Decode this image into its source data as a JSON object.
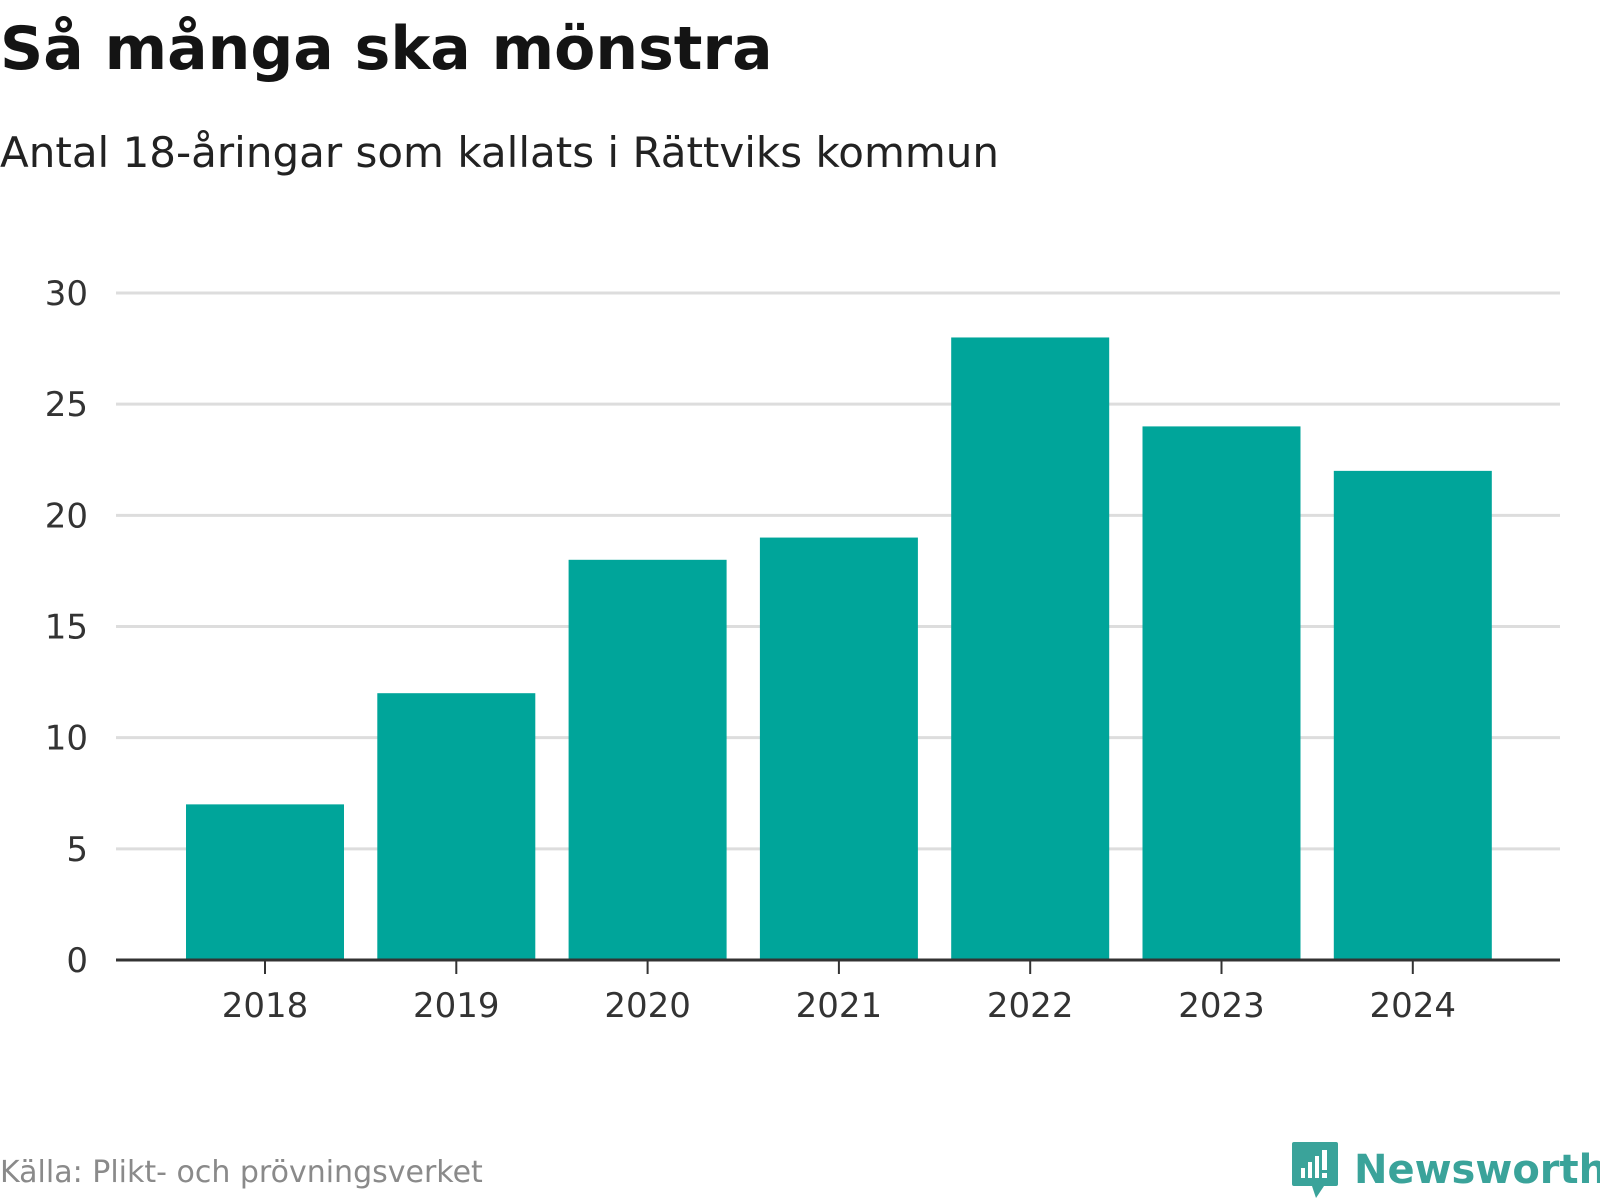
{
  "header": {
    "title": "Så många ska mönstra",
    "subtitle": "Antal 18-åringar som kallats i Rättviks kommun"
  },
  "footer": {
    "source": "Källa: Plikt- och prövningsverket",
    "brand": "Newsworthy"
  },
  "colors": {
    "bar": "#00a59a",
    "grid": "#dddddd",
    "axis": "#333333",
    "brand": "#3aa39a"
  },
  "icons": {
    "brand_logo": "newsworthy-logo-icon"
  },
  "chart_data": {
    "type": "bar",
    "title": "Så många ska mönstra",
    "subtitle": "Antal 18-åringar som kallats i Rättviks kommun",
    "categories": [
      "2018",
      "2019",
      "2020",
      "2021",
      "2022",
      "2023",
      "2024"
    ],
    "values": [
      7,
      12,
      18,
      19,
      28,
      24,
      22
    ],
    "ylim": [
      0,
      30
    ],
    "yticks": [
      0,
      5,
      10,
      15,
      20,
      25,
      30
    ],
    "xlabel": "",
    "ylabel": "",
    "grid": true
  }
}
